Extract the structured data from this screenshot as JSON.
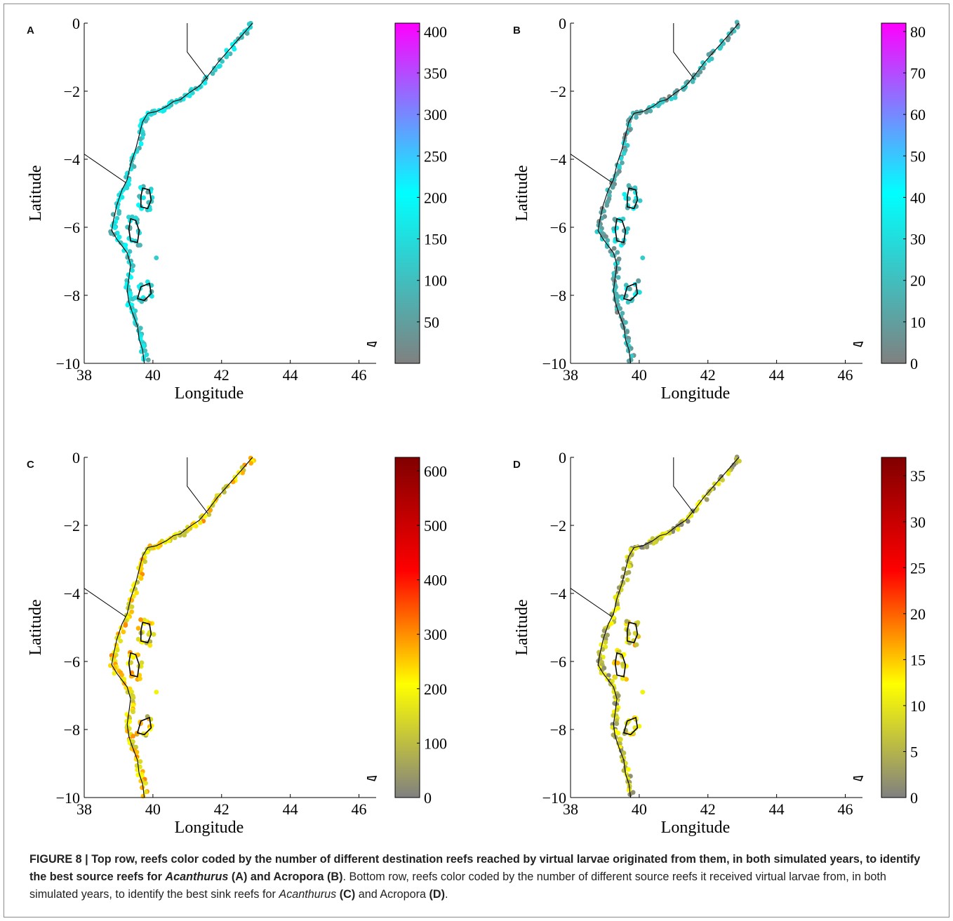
{
  "figure": {
    "caption": {
      "label": "FIGURE 8 | ",
      "bold1": "Top row, reefs color coded by the number of different destination reefs reached by virtual larvae originated from them, in both simulated years, to identify the best source reefs for ",
      "italic1": "Acanthurus",
      "bold2": " (A)",
      "plain1": " and Acropora ",
      "bold3": "(B)",
      "plain2": ". Bottom row, reefs color coded by the number of different source reefs it received virtual larvae from, in both simulated years, to identify the best sink reefs for ",
      "italic2": "Acanthurus",
      "bold4": " (C)",
      "plain3": " and Acropora ",
      "bold5": "(D)",
      "plain4": "."
    }
  },
  "chart_data": [
    {
      "type": "map",
      "panel": "A",
      "xlabel": "Longitude",
      "ylabel": "Latitude",
      "xlim": [
        38,
        46.5
      ],
      "ylim": [
        -10,
        0
      ],
      "xticks": [
        "38",
        "40",
        "42",
        "44",
        "46"
      ],
      "yticks": [
        "0",
        "−2",
        "−4",
        "−6",
        "−8",
        "−10"
      ],
      "colorbar": {
        "min": 0,
        "max": 410,
        "ticks": [
          "400",
          "350",
          "300",
          "250",
          "200",
          "150",
          "100",
          "50"
        ],
        "colormap": [
          "#808080",
          "#00ffff",
          "#ff00ff"
        ]
      }
    },
    {
      "type": "map",
      "panel": "B",
      "xlabel": "Longitude",
      "ylabel": "Latitude",
      "xlim": [
        38,
        46.5
      ],
      "ylim": [
        -10,
        0
      ],
      "xticks": [
        "38",
        "40",
        "42",
        "44",
        "46"
      ],
      "yticks": [
        "0",
        "−2",
        "−4",
        "−6",
        "−8",
        "−10"
      ],
      "colorbar": {
        "min": 0,
        "max": 82,
        "ticks": [
          "80",
          "70",
          "60",
          "50",
          "40",
          "30",
          "20",
          "10",
          "0"
        ],
        "colormap": [
          "#808080",
          "#00ffff",
          "#ff00ff"
        ]
      }
    },
    {
      "type": "map",
      "panel": "C",
      "xlabel": "Longitude",
      "ylabel": "Latitude",
      "xlim": [
        38,
        46.5
      ],
      "ylim": [
        -10,
        0
      ],
      "xticks": [
        "38",
        "40",
        "42",
        "44",
        "46"
      ],
      "yticks": [
        "0",
        "−2",
        "−4",
        "−6",
        "−8",
        "−10"
      ],
      "colorbar": {
        "min": 0,
        "max": 625,
        "ticks": [
          "600",
          "500",
          "400",
          "300",
          "200",
          "100",
          "0"
        ],
        "colormap": [
          "#808080",
          "#ffff00",
          "#ff0000",
          "#800000"
        ]
      }
    },
    {
      "type": "map",
      "panel": "D",
      "xlabel": "Longitude",
      "ylabel": "Latitude",
      "xlim": [
        38,
        46.5
      ],
      "ylim": [
        -10,
        0
      ],
      "xticks": [
        "38",
        "40",
        "42",
        "44",
        "46"
      ],
      "yticks": [
        "0",
        "−2",
        "−4",
        "−6",
        "−8",
        "−10"
      ],
      "colorbar": {
        "min": 0,
        "max": 37,
        "ticks": [
          "35",
          "30",
          "25",
          "20",
          "15",
          "10",
          "5",
          "0"
        ],
        "colormap": [
          "#808080",
          "#ffff00",
          "#ff0000",
          "#800000"
        ]
      }
    }
  ]
}
